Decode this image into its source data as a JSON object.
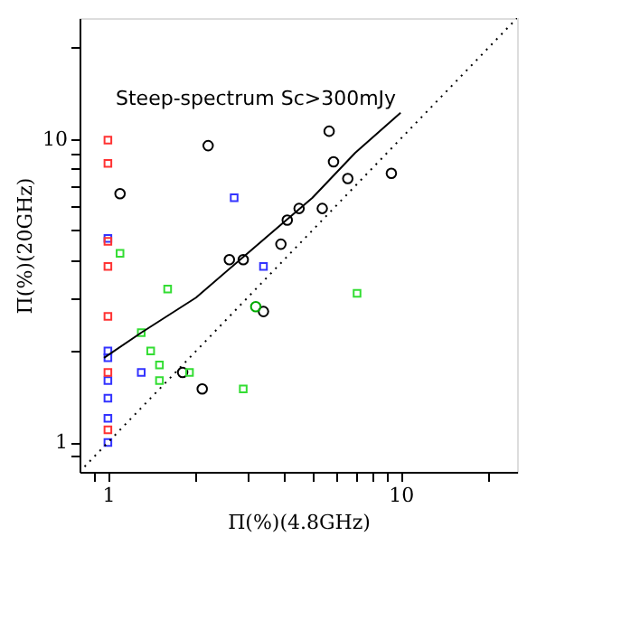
{
  "chart_data": {
    "type": "scatter",
    "title": "Steep-spectrum Sc>300mJy",
    "xlabel": "Π(%)(4.8GHz)",
    "ylabel": "Π(%)(20GHz)",
    "log": "xy",
    "grid": false,
    "xlim": [
      0.8,
      25
    ],
    "ylim": [
      0.8,
      25
    ],
    "xticks": [
      {
        "value": 0.9,
        "label": null
      },
      1,
      {
        "value": 2,
        "label": null
      },
      {
        "value": 3,
        "label": null
      },
      {
        "value": 4,
        "label": null
      },
      {
        "value": 5,
        "label": null
      },
      {
        "value": 6,
        "label": null
      },
      {
        "value": 7,
        "label": null
      },
      {
        "value": 8,
        "label": null
      },
      {
        "value": 9,
        "label": null
      },
      10,
      {
        "value": 20,
        "label": null
      }
    ],
    "yticks": [
      {
        "value": 0.9,
        "label": null
      },
      1,
      {
        "value": 2,
        "label": null
      },
      {
        "value": 3,
        "label": null
      },
      {
        "value": 4,
        "label": null
      },
      {
        "value": 5,
        "label": null
      },
      {
        "value": 6,
        "label": null
      },
      {
        "value": 7,
        "label": null
      },
      {
        "value": 8,
        "label": null
      },
      {
        "value": 9,
        "label": null
      },
      10,
      {
        "value": 20,
        "label": null
      }
    ],
    "series": [
      {
        "marker": "circle",
        "color": "#000000",
        "x": [
          2.2,
          5.7,
          5.9,
          6.6,
          9.3,
          1.1,
          4.5,
          5.4,
          4.1,
          3.9,
          2.6,
          2.9,
          3.4,
          1.8,
          2.1
        ],
        "values": [
          9.5,
          10.6,
          8.4,
          7.4,
          7.7,
          6.6,
          5.9,
          5.9,
          5.4,
          4.5,
          4.0,
          4.0,
          2.7,
          1.7,
          1.5
        ]
      },
      {
        "marker": "circle",
        "color": "#00aa00",
        "x": [
          3.2
        ],
        "values": [
          2.8
        ]
      },
      {
        "marker": "square",
        "color": "#3333ff",
        "x": [
          2.7,
          1,
          3.4,
          1,
          1,
          1.3,
          1,
          1,
          1,
          1
        ],
        "values": [
          6.4,
          4.7,
          3.8,
          2.0,
          1.9,
          1.7,
          1.6,
          1.4,
          1.2,
          1.0
        ]
      },
      {
        "marker": "square",
        "color": "#ff3333",
        "x": [
          1,
          1,
          1,
          1,
          1,
          1,
          1
        ],
        "values": [
          9.9,
          8.3,
          4.6,
          3.8,
          2.6,
          1.7,
          1.1
        ]
      },
      {
        "marker": "square",
        "color": "#33dd33",
        "x": [
          1.1,
          1.6,
          7.1,
          1.3,
          1.4,
          1.5,
          1.5,
          1.9,
          2.9
        ],
        "values": [
          4.2,
          3.2,
          3.1,
          2.3,
          2.0,
          1.8,
          1.6,
          1.7,
          1.5
        ]
      },
      {
        "type": "line",
        "line_style": "solid",
        "color": "#000000",
        "x": [
          0.97,
          1.3,
          2,
          3,
          5,
          7,
          10
        ],
        "values": [
          1.9,
          2.3,
          3.0,
          4.2,
          6.4,
          9.0,
          12.2
        ]
      },
      {
        "type": "line",
        "line_style": "dotted",
        "color": "#000000",
        "x": [
          0.8,
          25
        ],
        "values": [
          0.8,
          25
        ]
      }
    ]
  }
}
